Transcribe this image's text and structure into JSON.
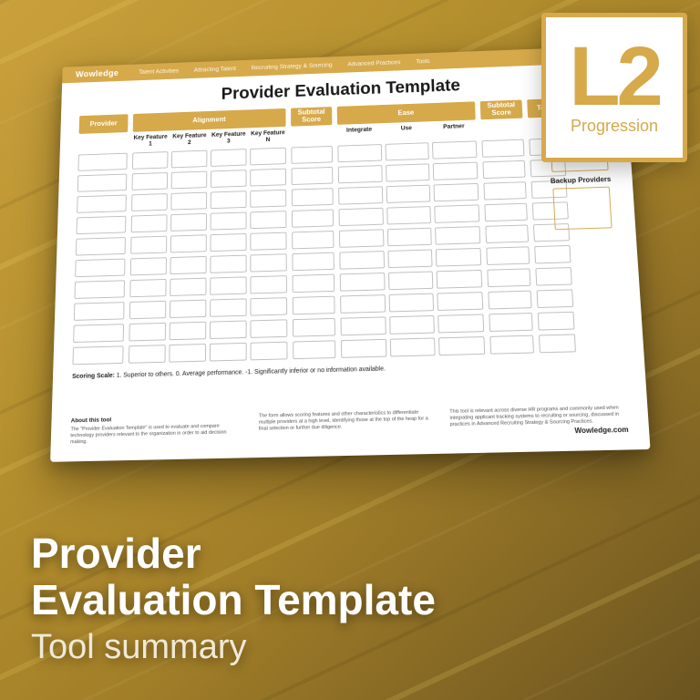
{
  "background": {
    "gradient_from": "#c9a03c",
    "gradient_to": "#6b5420",
    "stripe_accent": "#ffe678"
  },
  "badge": {
    "level": "L2",
    "label": "Progression",
    "border_color": "#d6a94a",
    "text_color": "#d6a94a",
    "bg_color": "#ffffff"
  },
  "title": {
    "line1": "Provider",
    "line2": "Evaluation Template",
    "subtitle": "Tool summary"
  },
  "document": {
    "brand": "Wowledge",
    "nav": [
      "Talent Activities",
      "Attracting Talent",
      "Recruiting Strategy & Sourcing",
      "Advanced Practices",
      "Tools"
    ],
    "heading": "Provider Evaluation Template",
    "header_accent": "#d6a94a",
    "columns": {
      "provider": "Provider",
      "alignment": "Alignment",
      "subtotal": "Subtotal Score",
      "ease": "Ease",
      "total": "Total"
    },
    "alignment_keys": [
      "Key Feature 1",
      "Key Feature 2",
      "Key Feature 3",
      "Key Feature N"
    ],
    "ease_keys": [
      "Integrate",
      "Use",
      "Partner"
    ],
    "row_count": 10,
    "side_panel": {
      "label": "Backup Providers"
    },
    "scoring_label": "Scoring Scale:",
    "scoring_text": "1. Superior to others. 0. Average performance. -1. Significantly inferior or no information available.",
    "footer": {
      "about_heading": "About this tool",
      "about_text": "The \"Provider Evaluation Template\" is used to evaluate and compare technology providers relevant to the organization in order to aid decision making.",
      "middle_text": "The form allows scoring features and other characteristics to differentiate multiple providers at a high level, identifying those at the top of the heap for a final selection or further due diligence.",
      "right_text": "This tool is relevant across diverse HR programs and commonly used when integrating applicant tracking systems to recruiting or sourcing, discussed in practices in Advanced Recruiting Strategy & Sourcing Practices.",
      "site": "Wowledge.com"
    }
  }
}
